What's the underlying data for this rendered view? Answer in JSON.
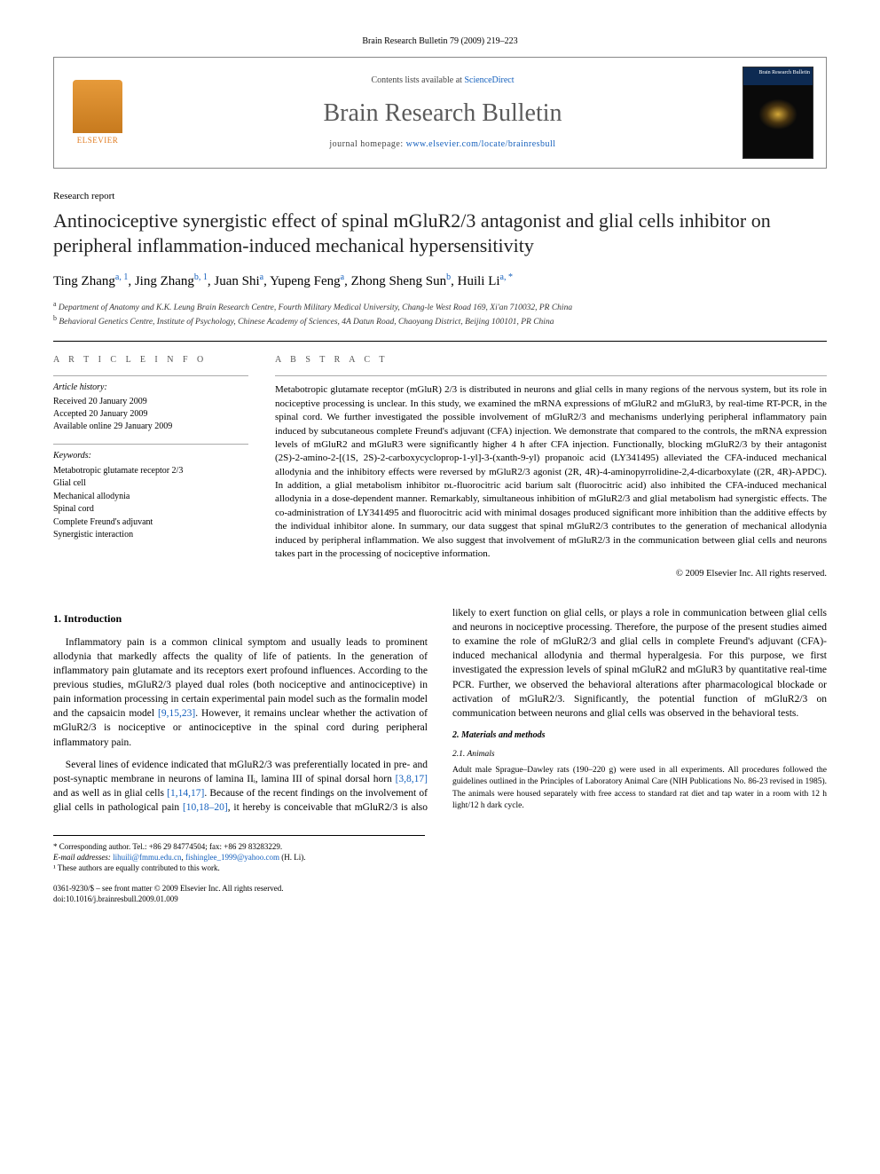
{
  "journal_header_line": "Brain Research Bulletin 79 (2009) 219–223",
  "header": {
    "contents_prefix": "Contents lists available at ",
    "contents_link": "ScienceDirect",
    "journal_title": "Brain Research Bulletin",
    "homepage_prefix": "journal homepage: ",
    "homepage_url": "www.elsevier.com/locate/brainresbull",
    "elsevier_label": "ELSEVIER",
    "cover_label": "Brain Research Bulletin"
  },
  "article_type": "Research report",
  "title": "Antinociceptive synergistic effect of spinal mGluR2/3 antagonist and glial cells inhibitor on peripheral inflammation-induced mechanical hypersensitivity",
  "authors_html": "Ting Zhang<sup>a, 1</sup>, Jing Zhang<sup>b, 1</sup>, Juan Shi<sup>a</sup>, Yupeng Feng<sup>a</sup>, Zhong Sheng Sun<sup>b</sup>, Huili Li<sup>a, *</sup>",
  "affiliations": {
    "a": "Department of Anatomy and K.K. Leung Brain Research Centre, Fourth Military Medical University, Chang-le West Road 169, Xi'an 710032, PR China",
    "b": "Behavioral Genetics Centre, Institute of Psychology, Chinese Academy of Sciences, 4A Datun Road, Chaoyang District, Beijing 100101, PR China"
  },
  "info": {
    "heading": "A R T I C L E   I N F O",
    "history_label": "Article history:",
    "received": "Received 20 January 2009",
    "accepted": "Accepted 20 January 2009",
    "online": "Available online 29 January 2009",
    "keywords_label": "Keywords:",
    "keywords": [
      "Metabotropic glutamate receptor 2/3",
      "Glial cell",
      "Mechanical allodynia",
      "Spinal cord",
      "Complete Freund's adjuvant",
      "Synergistic interaction"
    ]
  },
  "abstract": {
    "heading": "A B S T R A C T",
    "text": "Metabotropic glutamate receptor (mGluR) 2/3 is distributed in neurons and glial cells in many regions of the nervous system, but its role in nociceptive processing is unclear. In this study, we examined the mRNA expressions of mGluR2 and mGluR3, by real-time RT-PCR, in the spinal cord. We further investigated the possible involvement of mGluR2/3 and mechanisms underlying peripheral inflammatory pain induced by subcutaneous complete Freund's adjuvant (CFA) injection. We demonstrate that compared to the controls, the mRNA expression levels of mGluR2 and mGluR3 were significantly higher 4 h after CFA injection. Functionally, blocking mGluR2/3 by their antagonist (2S)-2-amino-2-[(1S, 2S)-2-carboxycycloprop-1-yl]-3-(xanth-9-yl) propanoic acid (LY341495) alleviated the CFA-induced mechanical allodynia and the inhibitory effects were reversed by mGluR2/3 agonist (2R, 4R)-4-aminopyrrolidine-2,4-dicarboxylate ((2R, 4R)-APDC). In addition, a glial metabolism inhibitor ᴅʟ-fluorocitric acid barium salt (fluorocitric acid) also inhibited the CFA-induced mechanical allodynia in a dose-dependent manner. Remarkably, simultaneous inhibition of mGluR2/3 and glial metabolism had synergistic effects. The co-administration of LY341495 and fluorocitric acid with minimal dosages produced significant more inhibition than the additive effects by the individual inhibitor alone. In summary, our data suggest that spinal mGluR2/3 contributes to the generation of mechanical allodynia induced by peripheral inflammation. We also suggest that involvement of mGluR2/3 in the communication between glial cells and neurons takes part in the processing of nociceptive information.",
    "copyright": "© 2009 Elsevier Inc. All rights reserved."
  },
  "body": {
    "intro_heading": "1. Introduction",
    "intro_p1": "Inflammatory pain is a common clinical symptom and usually leads to prominent allodynia that markedly affects the quality of life of patients. In the generation of inflammatory pain glutamate and its receptors exert profound influences. According to the previous studies, mGluR2/3 played dual roles (both nociceptive and antinociceptive) in pain information processing in certain experimental pain model such as the formalin model and the capsaicin model ",
    "intro_p1_ref": "[9,15,23]",
    "intro_p1_tail": ". However, it remains unclear whether the activation of mGluR2/3 is nociceptive or antinociceptive in the spinal cord during peripheral inflammatory pain.",
    "intro_p2_a": "Several lines of evidence indicated that mGluR2/3 was preferentially located in pre- and post-synaptic membrane in neurons of lamina IIᵢ, lamina III of spinal dorsal horn ",
    "intro_p2_ref1": "[3,8,17]",
    "intro_p2_b": " and as well as in glial cells ",
    "intro_p2_ref2": "[1,14,17]",
    "intro_p2_c": ". Because of the recent findings on the involvement of glial cells in pathological pain ",
    "intro_p2_ref3": "[10,18–20]",
    "intro_p2_d": ", it hereby is conceivable that mGluR2/3 is also likely to exert function on glial cells, or plays a role in communication between glial cells and neurons in nociceptive processing. Therefore, the purpose of the present studies aimed to examine the role of mGluR2/3 and glial cells in complete Freund's adjuvant (CFA)-induced mechanical allodynia and thermal hyperalgesia. For this purpose, we first investigated the expression levels of spinal mGluR2 and mGluR3 by quantitative real-time PCR. Further, we observed the behavioral alterations after pharmacological blockade or activation of mGluR2/3. Significantly, the potential function of mGluR2/3 on communication between neurons and glial cells was observed in the behavioral tests.",
    "methods_heading": "2. Materials and methods",
    "animals_heading": "2.1. Animals",
    "animals_text": "Adult male Sprague–Dawley rats (190–220 g) were used in all experiments. All procedures followed the guidelines outlined in the Principles of Laboratory Animal Care (NIH Publications No. 86-23 revised in 1985). The animals were housed separately with free access to standard rat diet and tap water in a room with 12 h light/12 h dark cycle."
  },
  "footnotes": {
    "corresponding": "* Corresponding author. Tel.: +86 29 84774504; fax: +86 29 83283229.",
    "email_label": "E-mail addresses: ",
    "email1": "lihuili@fmmu.edu.cn",
    "email2": "fishinglee_1999@yahoo.com",
    "email_tail": " (H. Li).",
    "equal": "¹ These authors are equally contributed to this work."
  },
  "bottom": {
    "line1": "0361-9230/$ – see front matter © 2009 Elsevier Inc. All rights reserved.",
    "line2": "doi:10.1016/j.brainresbull.2009.01.009"
  },
  "colors": {
    "link": "#1560bd",
    "text": "#000000",
    "muted": "#555555",
    "rule": "#000000"
  }
}
